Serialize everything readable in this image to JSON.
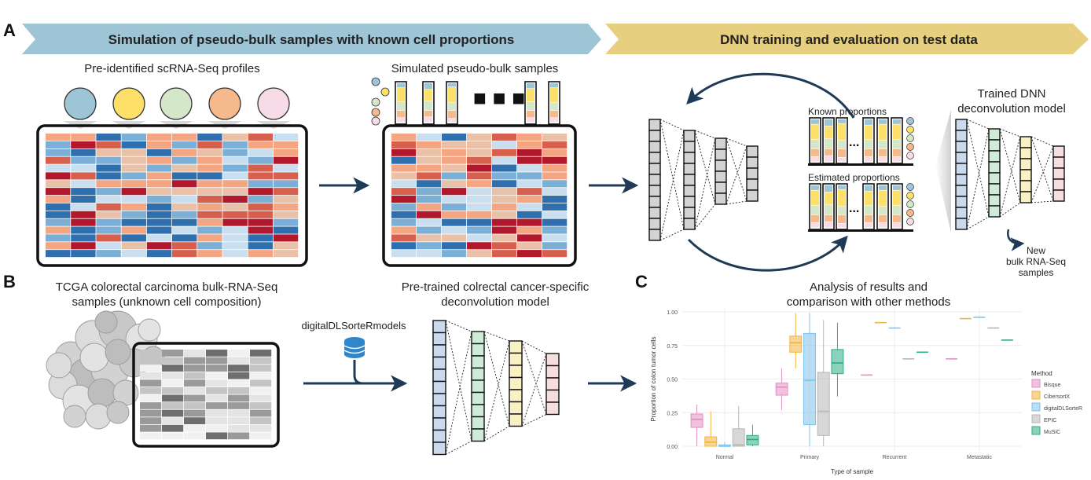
{
  "panels": {
    "a": "A",
    "b": "B",
    "c": "C"
  },
  "banners": {
    "left": "Simulation of pseudo-bulk samples with known cell proportions",
    "right": "DNN training and evaluation on test data",
    "left_color": "#9ec5d6",
    "right_color": "#e7cf80"
  },
  "panel_a": {
    "profiles_label": "Pre-identified scRNA-Seq profiles",
    "pseudobulk_label": "Simulated pseudo-bulk samples",
    "known_label": "Known proportions",
    "estimated_label": "Estimated proportions",
    "trained_label_1": "Trained DNN",
    "trained_label_2": "deconvolution model",
    "new_label_1": "New",
    "new_label_2": "bulk RNA-Seq",
    "new_label_3": "samples",
    "cell_colors": [
      "#9ec5d6",
      "#fce06a",
      "#d4e7c8",
      "#f5b98b",
      "#f7dbe6"
    ]
  },
  "panel_b": {
    "tcga_label_1": "TCGA colorectal carcinoma bulk-RNA-Seq",
    "tcga_label_2": "samples (unknown cell composition)",
    "db_label": "digitalDLSorteRmodels",
    "pretrained_label_1": "Pre-trained colrectal cancer-specific",
    "pretrained_label_2": "deconvolution model"
  },
  "panel_c": {
    "title_1": "Analysis of results and",
    "title_2": "comparison with other methods"
  },
  "chart_data": {
    "type": "box",
    "xlabel": "Type of sample",
    "ylabel": "Proportion of colon tumor cells",
    "categories": [
      "Normal",
      "Primary",
      "Recurrent",
      "Metastatic"
    ],
    "ylim": [
      0,
      1
    ],
    "yticks": [
      "0.00",
      "0.25",
      "0.50",
      "0.75",
      "1.00"
    ],
    "legend_title": "Method",
    "legend_position": "right",
    "series": [
      {
        "name": "Bisque",
        "color": "#e58ec2",
        "boxes": [
          [
            0.0,
            0.14,
            0.2,
            0.24,
            0.31
          ],
          [
            0.27,
            0.38,
            0.44,
            0.47,
            0.58
          ],
          null,
          null
        ],
        "points": [
          0.53,
          0.65
        ]
      },
      {
        "name": "CibersortX",
        "color": "#f0b43c",
        "boxes": [
          [
            0.0,
            0.0,
            0.03,
            0.07,
            0.26
          ],
          [
            0.58,
            0.7,
            0.77,
            0.82,
            0.99
          ],
          null,
          null
        ],
        "points": [
          0.92,
          0.95
        ]
      },
      {
        "name": "digitalDLSorteR",
        "color": "#7fc3ea",
        "boxes": [
          [
            0.0,
            0.0,
            0.0,
            0.01,
            0.03
          ],
          [
            0.0,
            0.16,
            0.49,
            0.84,
            0.99
          ],
          null,
          null
        ],
        "points": [
          0.88,
          0.96
        ]
      },
      {
        "name": "EPIC",
        "color": "#b7b7b7",
        "boxes": [
          [
            0.0,
            0.0,
            0.01,
            0.13,
            0.3
          ],
          [
            0.0,
            0.08,
            0.26,
            0.55,
            0.94
          ],
          null,
          null
        ],
        "points": [
          0.65,
          0.88
        ]
      },
      {
        "name": "MuSiC",
        "color": "#2eab84",
        "boxes": [
          [
            0.0,
            0.01,
            0.05,
            0.08,
            0.16
          ],
          [
            0.37,
            0.54,
            0.62,
            0.72,
            0.92
          ],
          null,
          null
        ],
        "points": [
          0.7,
          0.79
        ]
      }
    ]
  }
}
